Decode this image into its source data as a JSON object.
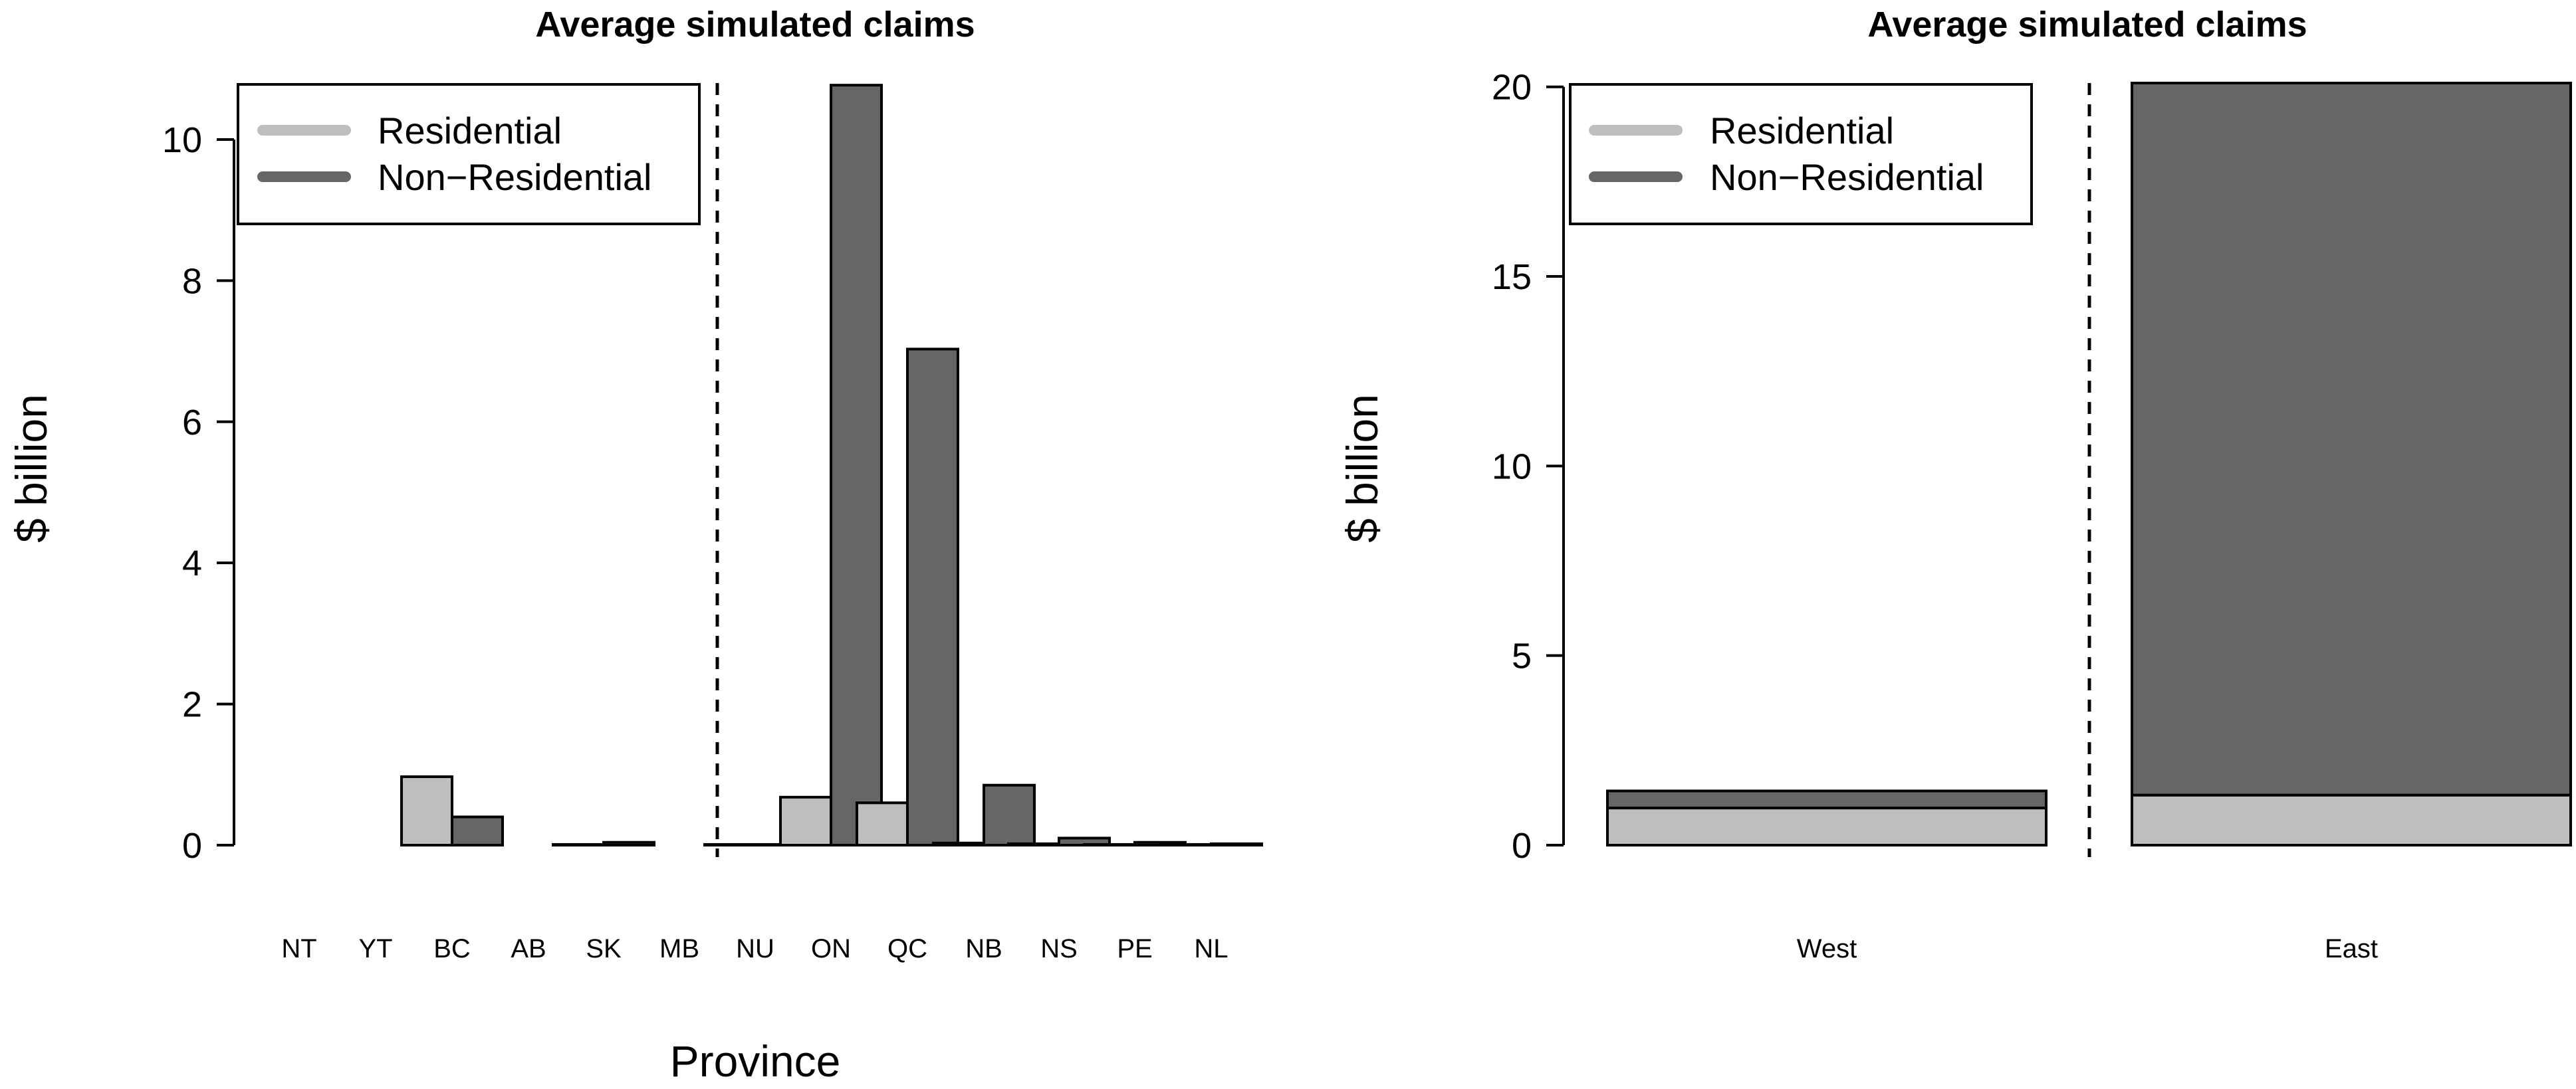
{
  "chart_data": [
    {
      "type": "bar",
      "title": "Average simulated claims",
      "xlabel": "Province",
      "ylabel": "$ billion",
      "ylim": [
        0,
        10.8
      ],
      "yticks": [
        0,
        2,
        4,
        6,
        8,
        10
      ],
      "grid": false,
      "layout": "grouped",
      "categories": [
        "NT",
        "YT",
        "BC",
        "AB",
        "SK",
        "MB",
        "NU",
        "ON",
        "QC",
        "NB",
        "NS",
        "PE",
        "NL"
      ],
      "divider_after_category": "MB",
      "series": [
        {
          "name": "Residential",
          "color": "#bebebe",
          "values": [
            0.0,
            0.0,
            0.97,
            0.0,
            0.01,
            0.0,
            0.01,
            0.68,
            0.6,
            0.03,
            0.02,
            0.01,
            0.01
          ]
        },
        {
          "name": "Non−Residential",
          "color": "#666666",
          "values": [
            0.0,
            0.0,
            0.4,
            0.0,
            0.04,
            0.0,
            0.01,
            10.77,
            7.03,
            0.85,
            0.1,
            0.04,
            0.02
          ]
        }
      ],
      "legend": {
        "placement": "top-left"
      }
    },
    {
      "type": "bar",
      "title": "Average simulated claims",
      "xlabel": "",
      "ylabel": "$ billion",
      "ylim": [
        0,
        20.1
      ],
      "yticks": [
        0,
        5,
        10,
        15,
        20
      ],
      "grid": false,
      "layout": "stacked",
      "categories": [
        "West",
        "East"
      ],
      "divider_after_category": "West",
      "series": [
        {
          "name": "Residential",
          "color": "#bebebe",
          "values": [
            0.98,
            1.32
          ]
        },
        {
          "name": "Non−Residential",
          "color": "#666666",
          "values": [
            0.45,
            18.78
          ]
        }
      ],
      "legend": {
        "placement": "top-left"
      }
    }
  ]
}
